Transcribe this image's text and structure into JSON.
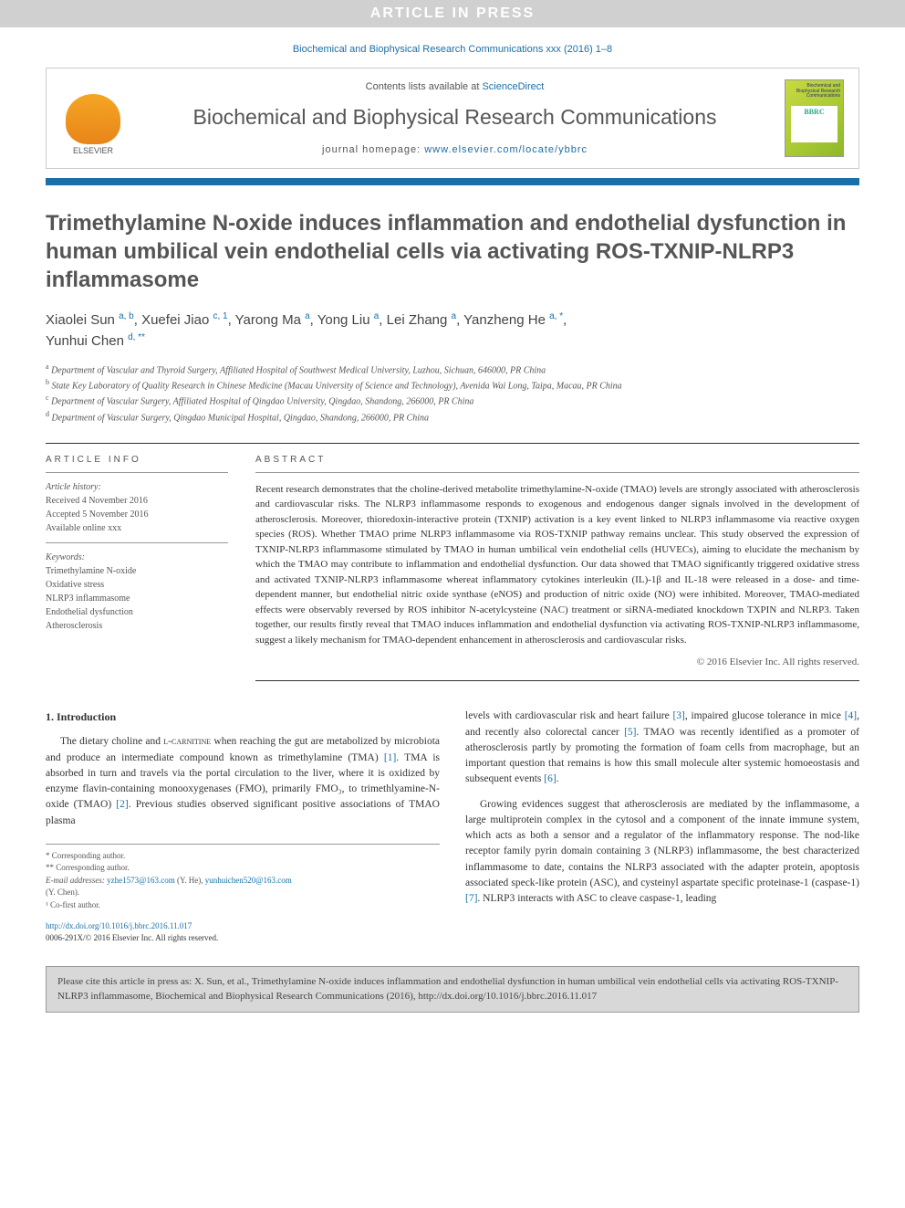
{
  "banner": "ARTICLE IN PRESS",
  "top_citation": "Biochemical and Biophysical Research Communications xxx (2016) 1–8",
  "header": {
    "contents_prefix": "Contents lists available at ",
    "contents_link": "ScienceDirect",
    "journal_name": "Biochemical and Biophysical Research Communications",
    "homepage_prefix": "journal homepage: ",
    "homepage_url": "www.elsevier.com/locate/ybbrc",
    "publisher": "ELSEVIER",
    "cover_title": "Biochemical and\nBiophysical\nResearch\nCommunications",
    "cover_abbrev": "BBRC"
  },
  "title": "Trimethylamine N-oxide induces inflammation and endothelial dysfunction in human umbilical vein endothelial cells via activating ROS-TXNIP-NLRP3 inflammasome",
  "authors_html": "Xiaolei Sun <sup>a, b</sup>, Xuefei Jiao <sup>c, 1</sup>, Yarong Ma <sup>a</sup>, Yong Liu <sup>a</sup>, Lei Zhang <sup>a</sup>, Yanzheng He <sup>a, *</sup>, Yunhui Chen <sup>d, **</sup>",
  "affiliations": [
    {
      "sup": "a",
      "text": "Department of Vascular and Thyroid Surgery, Affiliated Hospital of Southwest Medical University, Luzhou, Sichuan, 646000, PR China"
    },
    {
      "sup": "b",
      "text": "State Key Laboratory of Quality Research in Chinese Medicine (Macau University of Science and Technology), Avenida Wai Long, Taipa, Macau, PR China"
    },
    {
      "sup": "c",
      "text": "Department of Vascular Surgery, Affiliated Hospital of Qingdao University, Qingdao, Shandong, 266000, PR China"
    },
    {
      "sup": "d",
      "text": "Department of Vascular Surgery, Qingdao Municipal Hospital, Qingdao, Shandong, 266000, PR China"
    }
  ],
  "info": {
    "heading": "ARTICLE INFO",
    "history_label": "Article history:",
    "history": [
      "Received 4 November 2016",
      "Accepted 5 November 2016",
      "Available online xxx"
    ],
    "keywords_label": "Keywords:",
    "keywords": [
      "Trimethylamine N-oxide",
      "Oxidative stress",
      "NLRP3 inflammasome",
      "Endothelial dysfunction",
      "Atherosclerosis"
    ]
  },
  "abstract": {
    "heading": "ABSTRACT",
    "text": "Recent research demonstrates that the choline-derived metabolite trimethylamine-N-oxide (TMAO) levels are strongly associated with atherosclerosis and cardiovascular risks. The NLRP3 inflammasome responds to exogenous and endogenous danger signals involved in the development of atherosclerosis. Moreover, thioredoxin-interactive protein (TXNIP) activation is a key event linked to NLRP3 inflammasome via reactive oxygen species (ROS). Whether TMAO prime NLRP3 inflammasome via ROS-TXNIP pathway remains unclear. This study observed the expression of TXNIP-NLRP3 inflammasome stimulated by TMAO in human umbilical vein endothelial cells (HUVECs), aiming to elucidate the mechanism by which the TMAO may contribute to inflammation and endothelial dysfunction. Our data showed that TMAO significantly triggered oxidative stress and activated TXNIP-NLRP3 inflammasome whereat inflammatory cytokines interleukin (IL)-1β and IL-18 were released in a dose- and time-dependent manner, but endothelial nitric oxide synthase (eNOS) and production of nitric oxide (NO) were inhibited. Moreover, TMAO-mediated effects were observably reversed by ROS inhibitor N-acetylcysteine (NAC) treatment or siRNA-mediated knockdown TXPIN and NLRP3. Taken together, our results firstly reveal that TMAO induces inflammation and endothelial dysfunction via activating ROS-TXNIP-NLRP3 inflammasome, suggest a likely mechanism for TMAO-dependent enhancement in atherosclerosis and cardiovascular risks.",
    "copyright": "© 2016 Elsevier Inc. All rights reserved."
  },
  "intro": {
    "heading": "1. Introduction",
    "p1_a": "The dietary choline and ",
    "p1_carnitine": "l-carnitine",
    "p1_b": " when reaching the gut are metabolized by microbiota and produce an intermediate compound known as trimethylamine (TMA) ",
    "p1_c": ". TMA is absorbed in turn and travels via the portal circulation to the liver, where it is oxidized by enzyme flavin-containing monooxygenases (FMO), primarily FMO₃, to trimethlyamine-N-oxide (TMAO) ",
    "p1_d": ". Previous studies observed significant positive associations of TMAO plasma",
    "p2_a": "levels with cardiovascular risk and heart failure ",
    "p2_b": ", impaired glucose tolerance in mice ",
    "p2_c": ", and recently also colorectal cancer ",
    "p2_d": ". TMAO was recently identified as a promoter of atherosclerosis partly by promoting the formation of foam cells from macrophage, but an important question that remains is how this small molecule alter systemic homoeostasis and subsequent events ",
    "p2_e": ".",
    "p3_a": "Growing evidences suggest that atherosclerosis are mediated by the inflammasome, a large multiprotein complex in the cytosol and a component of the innate immune system, which acts as both a sensor and a regulator of the inflammatory response. The nod-like receptor family pyrin domain containing 3 (NLRP3) inflammasome, the best characterized inflammasome to date, contains the NLRP3 associated with the adapter protein, apoptosis associated speck-like protein (ASC), and cysteinyl aspartate specific proteinase-1 (caspase-1) ",
    "p3_b": ". NLRP3 interacts with ASC to cleave caspase-1, leading"
  },
  "refs": {
    "r1": "[1]",
    "r2": "[2]",
    "r3": "[3]",
    "r4": "[4]",
    "r5": "[5]",
    "r6": "[6]",
    "r7": "[7]"
  },
  "footnotes": {
    "c1": "* Corresponding author.",
    "c2": "** Corresponding author.",
    "emails_label": "E-mail addresses:",
    "email1": "yzhe1573@163.com",
    "name1": "(Y. He),",
    "email2": "yunhuichen520@163.com",
    "name2": "(Y. Chen).",
    "cofirst": "¹ Co-first author."
  },
  "doi": {
    "url": "http://dx.doi.org/10.1016/j.bbrc.2016.11.017",
    "issn_line": "0006-291X/© 2016 Elsevier Inc. All rights reserved."
  },
  "cite_box": "Please cite this article in press as: X. Sun, et al., Trimethylamine N-oxide induces inflammation and endothelial dysfunction in human umbilical vein endothelial cells via activating ROS-TXNIP-NLRP3 inflammasome, Biochemical and Biophysical Research Communications (2016), http://dx.doi.org/10.1016/j.bbrc.2016.11.017",
  "colors": {
    "banner_bg": "#d0d0d0",
    "link": "#1a6fa8",
    "bar": "#1a6fa8",
    "cover_grad_a": "#c7d943",
    "cover_grad_b": "#8fb82b"
  }
}
